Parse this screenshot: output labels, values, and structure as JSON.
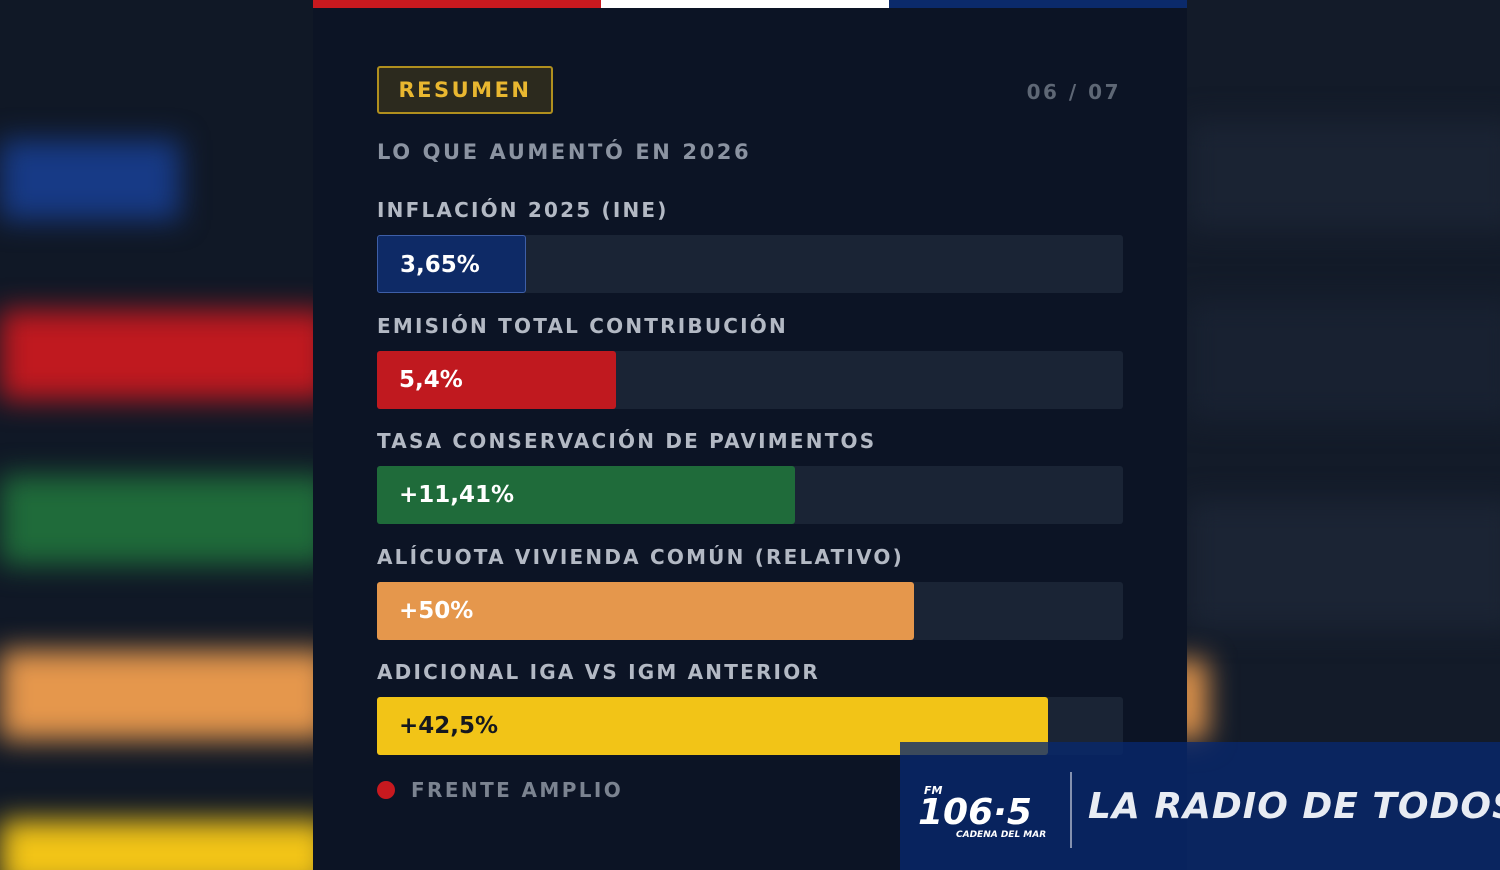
{
  "header": {
    "badge": "RESUMEN",
    "pager": "06 / 07",
    "subtitle": "LO QUE AUMENTÓ EN 2026"
  },
  "chart_data": {
    "type": "bar",
    "orientation": "horizontal",
    "title": "LO QUE AUMENTÓ EN 2026",
    "categories": [
      "INFLACIÓN 2025 (INE)",
      "EMISIÓN TOTAL CONTRIBUCIÓN",
      "TASA CONSERVACIÓN DE PAVIMENTOS",
      "ALÍCUOTA VIVIENDA COMÚN (RELATIVO)",
      "ADICIONAL IGA VS IGM ANTERIOR"
    ],
    "value_labels": [
      "3,65%",
      "5,4%",
      "+11,41%",
      "+50%",
      "+42,5%"
    ],
    "values": [
      3.65,
      5.4,
      11.41,
      50,
      42.5
    ],
    "bar_fill_fraction": [
      0.2,
      0.32,
      0.56,
      0.72,
      0.9
    ],
    "colors": [
      "#0e2a66",
      "#c0191f",
      "#1f6b3a",
      "#e5974c",
      "#f2c417"
    ],
    "value_text_colors": [
      "#ffffff",
      "#ffffff",
      "#ffffff",
      "#ffffff",
      "#15181f"
    ],
    "legend": [
      {
        "label": "FRENTE AMPLIO",
        "color": "#c8191f"
      }
    ]
  },
  "watermark": {
    "station_fm": "FM",
    "station_number": "106·5",
    "station_tagline": "CADENA DEL MAR",
    "slogan": "LA RADIO DE TODOS"
  },
  "colors": {
    "flag_red": "#c8191f",
    "flag_white": "#ffffff",
    "flag_blue": "#0b2a6b",
    "background": "#0c1425"
  }
}
